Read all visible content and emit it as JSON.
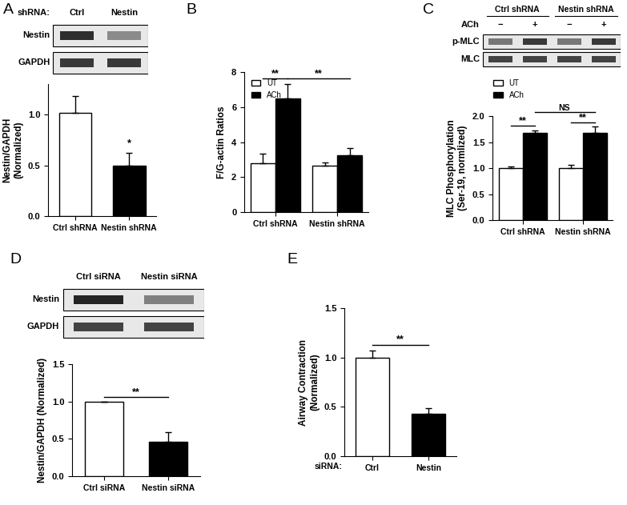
{
  "chart_data": [
    {
      "panel": "A",
      "type": "bar",
      "blot": {
        "prefix": "shRNA:",
        "lanes": [
          "Ctrl",
          "Nestin"
        ],
        "rows": [
          "Nestin",
          "GAPDH"
        ]
      },
      "categories": [
        "Ctrl shRNA",
        "Nestin shRNA"
      ],
      "values": [
        1.02,
        0.5
      ],
      "errors": [
        0.16,
        0.12
      ],
      "colors": [
        "#ffffff",
        "#000000"
      ],
      "ylabel": "Nestin/GAPDH\n(Normalized)",
      "ylim": [
        0,
        1.3
      ],
      "yticks": [
        {
          "value": 0,
          "label": "0.0"
        },
        {
          "value": 0.5,
          "label": "0.5"
        },
        {
          "value": 1,
          "label": "1.0"
        }
      ],
      "annotations": [
        {
          "text": "*",
          "at": 1
        }
      ]
    },
    {
      "panel": "B",
      "type": "bar",
      "categories": [
        "Ctrl shRNA",
        "Nestin shRNA"
      ],
      "series": [
        {
          "name": "UT",
          "color": "#ffffff",
          "values": [
            2.8,
            2.65
          ],
          "errors": [
            0.55,
            0.2
          ]
        },
        {
          "name": "ACh",
          "color": "#000000",
          "values": [
            6.5,
            3.25
          ],
          "errors": [
            0.8,
            0.4
          ]
        }
      ],
      "ylabel": "F/G-actin Ratios",
      "ylim": [
        0,
        8
      ],
      "yticks": [
        0,
        2,
        4,
        6,
        8
      ],
      "legend": "upper left",
      "annotations": [
        {
          "text": "**",
          "from": [
            0,
            0
          ],
          "to": [
            0,
            1
          ]
        },
        {
          "text": "**",
          "from": [
            0,
            1
          ],
          "to": [
            1,
            1
          ]
        }
      ]
    },
    {
      "panel": "C",
      "type": "bar",
      "blot": {
        "groups": [
          "Ctrl shRNA",
          "Nestin shRNA"
        ],
        "prefix": "ACh",
        "lanes": [
          "−",
          "+",
          "−",
          "+"
        ],
        "rows": [
          "p-MLC",
          "MLC"
        ]
      },
      "categories": [
        "Ctrl shRNA",
        "Nestin shRNA"
      ],
      "series": [
        {
          "name": "UT",
          "color": "#ffffff",
          "values": [
            1.0,
            1.0
          ],
          "errors": [
            0.03,
            0.06
          ]
        },
        {
          "name": "ACh",
          "color": "#000000",
          "values": [
            1.68,
            1.68
          ],
          "errors": [
            0.05,
            0.12
          ]
        }
      ],
      "ylabel": "MLC Phosphorylation\n(Ser-19, normlized)",
      "ylim": [
        0,
        2
      ],
      "yticks": [
        {
          "value": 0,
          "label": "0.0"
        },
        {
          "value": 0.5,
          "label": "0.5"
        },
        {
          "value": 1,
          "label": "1.0"
        },
        {
          "value": 1.5,
          "label": "1.5"
        },
        {
          "value": 2,
          "label": "2.0"
        }
      ],
      "legend": "upper left",
      "annotations": [
        {
          "text": "**",
          "from": [
            0,
            0
          ],
          "to": [
            0,
            1
          ]
        },
        {
          "text": "**",
          "from": [
            1,
            0
          ],
          "to": [
            1,
            1
          ]
        },
        {
          "text": "NS",
          "from": [
            0,
            1
          ],
          "to": [
            1,
            1
          ]
        }
      ]
    },
    {
      "panel": "D",
      "type": "bar",
      "blot": {
        "lanes": [
          "Ctrl siRNA",
          "Nestin siRNA"
        ],
        "rows": [
          "Nestin",
          "GAPDH"
        ]
      },
      "categories": [
        "Ctrl siRNA",
        "Nestin siRNA"
      ],
      "values": [
        1.0,
        0.46
      ],
      "errors": [
        0,
        0.13
      ],
      "colors": [
        "#ffffff",
        "#000000"
      ],
      "ylabel": "Nestin/GAPDH (Normalized)",
      "ylim": [
        0,
        1.5
      ],
      "yticks": [
        {
          "value": 0,
          "label": "0.0"
        },
        {
          "value": 0.5,
          "label": "0.5"
        },
        {
          "value": 1,
          "label": "1.0"
        },
        {
          "value": 1.5,
          "label": "1.5"
        }
      ],
      "annotations": [
        {
          "text": "**",
          "from": 0,
          "to": 1
        }
      ]
    },
    {
      "panel": "E",
      "type": "bar",
      "categories": [
        "Ctrl",
        "Nestin"
      ],
      "xlabel": "siRNA:",
      "values": [
        1.0,
        0.43
      ],
      "errors": [
        0.07,
        0.06
      ],
      "colors": [
        "#ffffff",
        "#000000"
      ],
      "ylabel": "Airway Contraction\n(Normalized)",
      "ylim": [
        0,
        1.5
      ],
      "yticks": [
        {
          "value": 0,
          "label": "0.0"
        },
        {
          "value": 0.5,
          "label": "0.5"
        },
        {
          "value": 1,
          "label": "1.0"
        },
        {
          "value": 1.5,
          "label": "1.5"
        }
      ],
      "annotations": [
        {
          "text": "**",
          "from": 0,
          "to": 1
        }
      ]
    }
  ]
}
